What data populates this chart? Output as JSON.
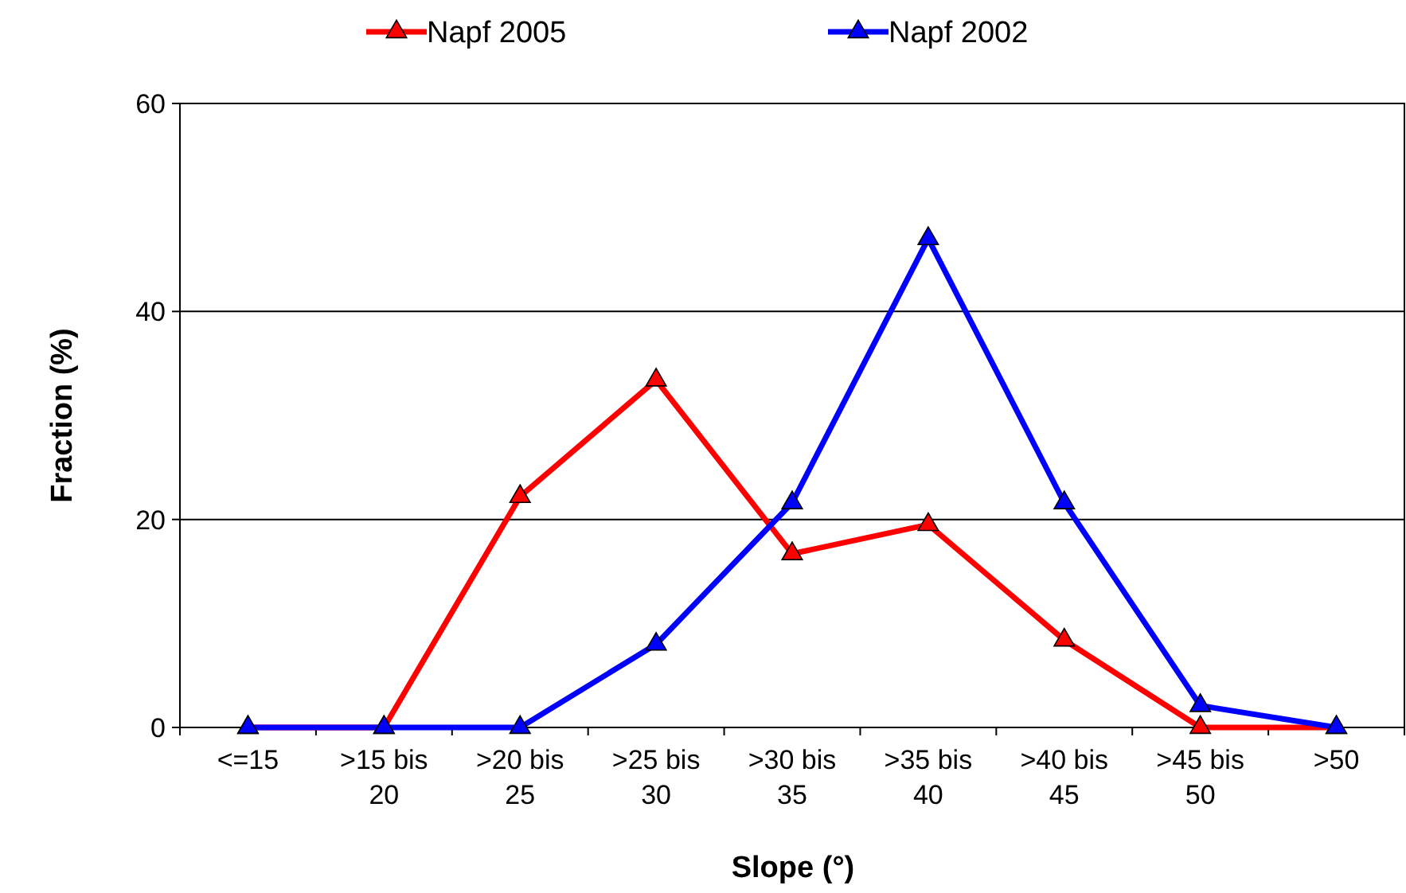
{
  "chart_data": {
    "type": "line",
    "xlabel": "Slope (°)",
    "ylabel": "Fraction (%)",
    "categories": [
      "<=15",
      ">15 bis 20",
      ">20 bis 25",
      ">25 bis 30",
      ">30 bis 35",
      ">35 bis 40",
      ">40 bis 45",
      ">45 bis 50",
      ">50"
    ],
    "series": [
      {
        "name": "Napf 2005",
        "color": "#ff0000",
        "values": [
          0,
          0,
          22.2,
          33.4,
          16.7,
          19.5,
          8.4,
          0,
          0
        ]
      },
      {
        "name": "Napf 2002",
        "color": "#0000ff",
        "values": [
          0,
          0,
          0,
          8.0,
          21.6,
          47.0,
          21.6,
          2.1,
          0
        ]
      }
    ],
    "ylim": [
      0,
      60
    ],
    "yticks": [
      0,
      20,
      40,
      60
    ],
    "grid": "y",
    "legend": "top",
    "marker": "triangle",
    "line_style": "solid"
  }
}
